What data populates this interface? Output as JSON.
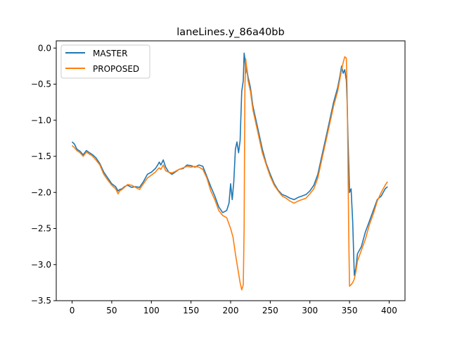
{
  "chart_data": {
    "type": "line",
    "title": "laneLines.y_86a40bb",
    "xlabel": "",
    "ylabel": "",
    "xlim": [
      -20,
      420
    ],
    "ylim": [
      -3.5,
      0.1
    ],
    "xticks": [
      0,
      50,
      100,
      150,
      200,
      250,
      300,
      350,
      400
    ],
    "yticks": [
      0.0,
      -0.5,
      -1.0,
      -1.5,
      -2.0,
      -2.5,
      -3.0,
      -3.5
    ],
    "xtick_labels": [
      "0",
      "50",
      "100",
      "150",
      "200",
      "250",
      "300",
      "350",
      "400"
    ],
    "ytick_labels": [
      "0.0",
      "−0.5",
      "−1.0",
      "−1.5",
      "−2.0",
      "−2.5",
      "−3.0",
      "−3.5"
    ],
    "grid": false,
    "legend_position": "top-left",
    "series": [
      {
        "name": "MASTER",
        "color": "#1f77b4",
        "x": [
          0,
          3,
          6,
          10,
          14,
          18,
          22,
          26,
          30,
          35,
          40,
          45,
          50,
          55,
          58,
          60,
          63,
          66,
          70,
          75,
          80,
          85,
          90,
          95,
          100,
          105,
          108,
          110,
          112,
          115,
          118,
          122,
          126,
          130,
          135,
          140,
          145,
          150,
          155,
          160,
          165,
          170,
          175,
          180,
          185,
          190,
          195,
          198,
          200,
          202,
          204,
          206,
          208,
          210,
          212,
          214,
          216,
          217,
          218,
          219,
          220,
          222,
          225,
          228,
          232,
          236,
          240,
          245,
          250,
          255,
          260,
          265,
          270,
          275,
          280,
          285,
          290,
          295,
          300,
          305,
          310,
          315,
          320,
          325,
          330,
          335,
          338,
          340,
          342,
          344,
          346,
          347,
          348,
          349,
          350,
          352,
          354,
          356,
          358,
          360,
          365,
          370,
          375,
          380,
          385,
          390,
          395,
          398
        ],
        "values": [
          -1.3,
          -1.33,
          -1.4,
          -1.43,
          -1.48,
          -1.42,
          -1.45,
          -1.48,
          -1.52,
          -1.6,
          -1.72,
          -1.8,
          -1.88,
          -1.92,
          -1.98,
          -1.96,
          -1.95,
          -1.92,
          -1.9,
          -1.93,
          -1.92,
          -1.93,
          -1.85,
          -1.75,
          -1.72,
          -1.67,
          -1.62,
          -1.58,
          -1.62,
          -1.55,
          -1.65,
          -1.72,
          -1.75,
          -1.72,
          -1.68,
          -1.67,
          -1.62,
          -1.63,
          -1.65,
          -1.62,
          -1.64,
          -1.78,
          -1.92,
          -2.05,
          -2.2,
          -2.28,
          -2.25,
          -2.15,
          -1.88,
          -2.1,
          -1.85,
          -1.4,
          -1.3,
          -1.45,
          -1.28,
          -0.6,
          -0.45,
          -0.07,
          -0.15,
          -0.35,
          -0.25,
          -0.4,
          -0.55,
          -0.8,
          -1.0,
          -1.2,
          -1.4,
          -1.6,
          -1.75,
          -1.88,
          -1.97,
          -2.03,
          -2.05,
          -2.08,
          -2.1,
          -2.07,
          -2.05,
          -2.03,
          -1.98,
          -1.9,
          -1.75,
          -1.5,
          -1.25,
          -1.0,
          -0.75,
          -0.55,
          -0.38,
          -0.25,
          -0.35,
          -0.3,
          -0.45,
          -0.75,
          -1.2,
          -1.6,
          -2.0,
          -1.95,
          -2.4,
          -3.15,
          -3.05,
          -2.85,
          -2.75,
          -2.55,
          -2.4,
          -2.25,
          -2.1,
          -2.05,
          -1.95,
          -1.92
        ]
      },
      {
        "name": "PROPOSED",
        "color": "#ff7f0e",
        "x": [
          0,
          3,
          6,
          10,
          14,
          18,
          22,
          26,
          30,
          35,
          40,
          45,
          50,
          55,
          58,
          60,
          63,
          66,
          70,
          75,
          80,
          85,
          90,
          95,
          100,
          105,
          108,
          110,
          112,
          115,
          118,
          122,
          126,
          130,
          135,
          140,
          145,
          150,
          155,
          160,
          165,
          170,
          175,
          180,
          185,
          190,
          195,
          200,
          203,
          206,
          209,
          212,
          214,
          216,
          217,
          218,
          219,
          220,
          222,
          225,
          228,
          232,
          236,
          240,
          245,
          250,
          255,
          260,
          265,
          270,
          275,
          280,
          285,
          290,
          295,
          300,
          305,
          310,
          315,
          320,
          325,
          330,
          335,
          338,
          340,
          342,
          344,
          346,
          347,
          348,
          349,
          350,
          352,
          354,
          356,
          358,
          360,
          365,
          370,
          375,
          380,
          385,
          390,
          395,
          398
        ],
        "values": [
          -1.35,
          -1.38,
          -1.42,
          -1.45,
          -1.5,
          -1.44,
          -1.47,
          -1.5,
          -1.55,
          -1.62,
          -1.75,
          -1.83,
          -1.9,
          -1.95,
          -2.02,
          -1.98,
          -1.96,
          -1.93,
          -1.89,
          -1.9,
          -1.93,
          -1.96,
          -1.88,
          -1.8,
          -1.76,
          -1.72,
          -1.68,
          -1.66,
          -1.68,
          -1.62,
          -1.7,
          -1.72,
          -1.73,
          -1.71,
          -1.68,
          -1.66,
          -1.64,
          -1.65,
          -1.64,
          -1.65,
          -1.68,
          -1.8,
          -1.98,
          -2.1,
          -2.25,
          -2.32,
          -2.35,
          -2.5,
          -2.62,
          -2.85,
          -3.05,
          -3.25,
          -3.35,
          -3.28,
          -2.5,
          -0.55,
          -0.15,
          -0.25,
          -0.45,
          -0.6,
          -0.85,
          -1.05,
          -1.25,
          -1.45,
          -1.62,
          -1.78,
          -1.9,
          -1.98,
          -2.05,
          -2.08,
          -2.12,
          -2.15,
          -2.12,
          -2.1,
          -2.08,
          -2.02,
          -1.95,
          -1.8,
          -1.55,
          -1.3,
          -1.05,
          -0.8,
          -0.6,
          -0.42,
          -0.3,
          -0.2,
          -0.12,
          -0.14,
          -0.6,
          -1.5,
          -2.6,
          -3.3,
          -3.28,
          -3.25,
          -3.2,
          -3.1,
          -2.95,
          -2.8,
          -2.65,
          -2.45,
          -2.3,
          -2.12,
          -2.0,
          -1.9,
          -1.85
        ]
      }
    ]
  }
}
